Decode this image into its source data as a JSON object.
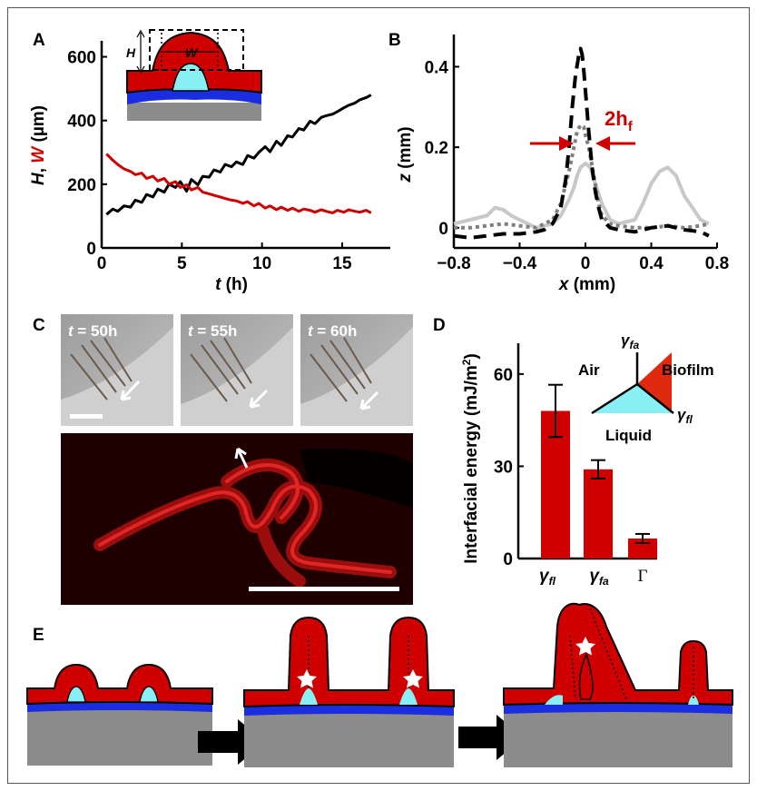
{
  "panel_labels": {
    "a": "A",
    "b": "B",
    "c": "C",
    "d": "D",
    "e": "E"
  },
  "colors": {
    "red": "#d10000",
    "cyan": "#88f0f4",
    "blue": "#1a2ee0",
    "gray": "#8c8c8c",
    "black": "#000000",
    "light_gray": "#c8c8c8",
    "dotted_gray": "#7f7f7f",
    "micrograph": "#a8a8a8"
  },
  "panel_a": {
    "ylabel_H": "H",
    "ylabel_sep": ",",
    "ylabel_W": "W",
    "ylabel_unit": "(µm)",
    "xlabel_t": "t",
    "xlabel_unit": "(h)",
    "inset_H": "H",
    "inset_W": "W"
  },
  "panel_b": {
    "ylabel_z": "z",
    "ylabel_unit": "(mm)",
    "xlabel_x": "x",
    "xlabel_unit": "(mm)",
    "annotation_main": "2h",
    "annotation_sub": "f"
  },
  "panel_c": {
    "frames": [
      {
        "t_var": "t",
        "rest": " = 50h"
      },
      {
        "t_var": "t",
        "rest": " = 55h"
      },
      {
        "t_var": "t",
        "rest": " = 60h"
      }
    ]
  },
  "panel_d": {
    "ylabel": "Interfacial energy (mJ/m",
    "ylabel_sup": "2",
    "ylabel_close": ")",
    "diagram": {
      "air": "Air",
      "biofilm": "Biofilm",
      "liquid": "Liquid",
      "gamma": "γ",
      "sub_fa": "fa",
      "sub_fl": "fl"
    }
  },
  "chart_data": [
    {
      "type": "line",
      "panel": "A",
      "xlabel": "t (h)",
      "ylabel": "H, W (µm)",
      "xlim": [
        0,
        18
      ],
      "ylim": [
        0,
        650
      ],
      "xticks": [
        "0",
        "5",
        "10",
        "15"
      ],
      "yticks": [
        "0",
        "200",
        "400",
        "600"
      ],
      "series": [
        {
          "name": "H",
          "color": "#000000",
          "x": [
            0.3,
            0.7,
            1.0,
            1.4,
            1.8,
            2.1,
            2.5,
            2.8,
            3.2,
            3.5,
            3.9,
            4.2,
            4.6,
            4.9,
            5.3,
            5.6,
            6.0,
            6.3,
            6.7,
            7.0,
            7.4,
            7.7,
            8.1,
            8.4,
            8.8,
            9.1,
            9.5,
            9.8,
            10.2,
            10.5,
            10.9,
            11.2,
            11.6,
            11.9,
            12.3,
            12.6,
            13.0,
            13.3,
            13.7,
            14.0,
            14.4,
            14.7,
            15.1,
            15.4,
            15.8,
            16.1,
            16.5,
            16.8
          ],
          "y": [
            105,
            122,
            115,
            132,
            128,
            150,
            143,
            168,
            160,
            185,
            175,
            200,
            190,
            208,
            178,
            215,
            198,
            225,
            222,
            245,
            238,
            262,
            255,
            270,
            262,
            290,
            282,
            300,
            318,
            302,
            335,
            322,
            352,
            348,
            375,
            370,
            398,
            390,
            410,
            415,
            420,
            428,
            440,
            448,
            455,
            465,
            472,
            480
          ]
        },
        {
          "name": "W",
          "color": "#d10000",
          "x": [
            0.3,
            0.7,
            1.0,
            1.4,
            1.8,
            2.1,
            2.5,
            2.8,
            3.2,
            3.5,
            3.9,
            4.2,
            4.6,
            4.9,
            5.3,
            5.6,
            6.0,
            6.3,
            6.7,
            7.0,
            7.4,
            7.7,
            8.1,
            8.4,
            8.8,
            9.1,
            9.5,
            9.8,
            10.2,
            10.5,
            10.9,
            11.2,
            11.6,
            11.9,
            12.3,
            12.6,
            13.0,
            13.3,
            13.7,
            14.0,
            14.4,
            14.7,
            15.1,
            15.4,
            15.8,
            16.1,
            16.5,
            16.8
          ],
          "y": [
            295,
            275,
            262,
            248,
            240,
            230,
            235,
            218,
            225,
            210,
            218,
            200,
            208,
            190,
            198,
            182,
            190,
            175,
            170,
            165,
            160,
            155,
            150,
            148,
            140,
            145,
            132,
            140,
            125,
            132,
            120,
            128,
            118,
            125,
            115,
            122,
            118,
            112,
            120,
            115,
            110,
            118,
            112,
            120,
            115,
            112,
            118,
            110
          ]
        }
      ]
    },
    {
      "type": "line",
      "panel": "B",
      "xlabel": "x (mm)",
      "ylabel": "z (mm)",
      "xlim": [
        -0.8,
        0.8
      ],
      "ylim": [
        -0.05,
        0.48
      ],
      "xticks": [
        "−0.8",
        "−0.4",
        "0",
        "0.4",
        "0.8"
      ],
      "yticks": [
        "0",
        "0.2",
        "0.4"
      ],
      "series": [
        {
          "name": "dashed black",
          "style": "dashed",
          "color": "#000000",
          "x": [
            -0.8,
            -0.7,
            -0.6,
            -0.5,
            -0.4,
            -0.3,
            -0.25,
            -0.2,
            -0.15,
            -0.12,
            -0.1,
            -0.08,
            -0.06,
            -0.04,
            -0.03,
            -0.02,
            -0.01,
            0,
            0.02,
            0.04,
            0.06,
            0.08,
            0.1,
            0.15,
            0.2,
            0.3,
            0.4,
            0.5,
            0.6,
            0.7,
            0.75
          ],
          "y": [
            -0.02,
            -0.025,
            -0.02,
            -0.015,
            -0.015,
            -0.01,
            -0.005,
            0.01,
            0.05,
            0.12,
            0.2,
            0.3,
            0.38,
            0.43,
            0.445,
            0.43,
            0.39,
            0.34,
            0.24,
            0.15,
            0.09,
            0.05,
            0.02,
            0.0,
            -0.005,
            -0.01,
            0.0,
            0.005,
            -0.005,
            -0.01,
            -0.02
          ]
        },
        {
          "name": "dotted gray",
          "style": "dotted",
          "color": "#7f7f7f",
          "x": [
            -0.8,
            -0.7,
            -0.6,
            -0.5,
            -0.4,
            -0.3,
            -0.2,
            -0.15,
            -0.1,
            -0.07,
            -0.05,
            -0.03,
            -0.01,
            0,
            0.02,
            0.05,
            0.08,
            0.1,
            0.15,
            0.2,
            0.3,
            0.4,
            0.5,
            0.6,
            0.7,
            0.75
          ],
          "y": [
            0.0,
            0.0,
            0.005,
            0.01,
            0.005,
            0.0,
            0.02,
            0.06,
            0.14,
            0.2,
            0.24,
            0.255,
            0.25,
            0.23,
            0.2,
            0.13,
            0.06,
            0.03,
            0.01,
            0.005,
            0.0,
            0.0,
            0.005,
            0.0,
            0.005,
            0.01
          ]
        },
        {
          "name": "solid light gray",
          "style": "solid",
          "color": "#c8c8c8",
          "x": [
            -0.8,
            -0.7,
            -0.6,
            -0.55,
            -0.5,
            -0.45,
            -0.4,
            -0.3,
            -0.2,
            -0.15,
            -0.1,
            -0.07,
            -0.05,
            -0.03,
            0,
            0.03,
            0.06,
            0.1,
            0.15,
            0.2,
            0.3,
            0.35,
            0.4,
            0.45,
            0.5,
            0.55,
            0.6,
            0.7,
            0.75
          ],
          "y": [
            0.01,
            0.02,
            0.03,
            0.05,
            0.045,
            0.03,
            0.02,
            0.0,
            0.01,
            0.03,
            0.07,
            0.1,
            0.13,
            0.15,
            0.16,
            0.15,
            0.11,
            0.06,
            0.02,
            0.01,
            0.02,
            0.06,
            0.11,
            0.14,
            0.15,
            0.13,
            0.08,
            0.02,
            0.01
          ]
        }
      ]
    },
    {
      "type": "bar",
      "panel": "D",
      "ylabel": "Interfacial energy (mJ/m²)",
      "categories": [
        "γfl",
        "γfa",
        "Γ"
      ],
      "values": [
        48,
        29,
        6.5
      ],
      "errors": [
        8.5,
        3,
        1.5
      ],
      "ylim": [
        0,
        70
      ],
      "yticks": [
        "0",
        "30",
        "60"
      ]
    }
  ]
}
